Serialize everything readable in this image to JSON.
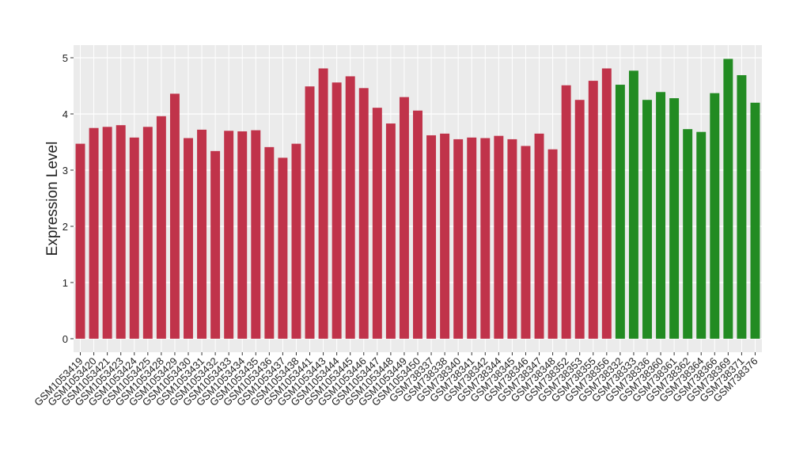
{
  "chart_data": {
    "type": "bar",
    "y_label": "Expression Level",
    "categories": [
      "GSM1053419",
      "GSM1053420",
      "GSM1053421",
      "GSM1053423",
      "GSM1053424",
      "GSM1053425",
      "GSM1053428",
      "GSM1053429",
      "GSM1053430",
      "GSM1053431",
      "GSM1053432",
      "GSM1053433",
      "GSM1053434",
      "GSM1053435",
      "GSM1053436",
      "GSM1053437",
      "GSM1053438",
      "GSM1053441",
      "GSM1053443",
      "GSM1053444",
      "GSM1053445",
      "GSM1053446",
      "GSM1053447",
      "GSM1053448",
      "GSM1053449",
      "GSM1053450",
      "GSM738337",
      "GSM738338",
      "GSM738340",
      "GSM738341",
      "GSM738342",
      "GSM738344",
      "GSM738345",
      "GSM738346",
      "GSM738347",
      "GSM738348",
      "GSM738352",
      "GSM738353",
      "GSM738355",
      "GSM738356",
      "GSM738332",
      "GSM738333",
      "GSM738336",
      "GSM738360",
      "GSM738361",
      "GSM738362",
      "GSM738364",
      "GSM738366",
      "GSM738369",
      "GSM738371",
      "GSM738376"
    ],
    "values": [
      3.47,
      3.75,
      3.77,
      3.8,
      3.58,
      3.77,
      3.96,
      4.36,
      3.57,
      3.72,
      3.34,
      3.7,
      3.69,
      3.71,
      3.41,
      3.22,
      3.47,
      4.49,
      4.81,
      4.56,
      4.67,
      4.46,
      4.11,
      3.83,
      4.3,
      4.06,
      3.62,
      3.65,
      3.55,
      3.58,
      3.57,
      3.61,
      3.55,
      3.43,
      3.65,
      3.37,
      4.51,
      4.25,
      4.59,
      4.81,
      4.52,
      4.77,
      4.25,
      4.39,
      4.28,
      3.73,
      3.68,
      4.37,
      4.98,
      4.69,
      4.2
    ],
    "colors": [
      "#c0334a",
      "#c0334a",
      "#c0334a",
      "#c0334a",
      "#c0334a",
      "#c0334a",
      "#c0334a",
      "#c0334a",
      "#c0334a",
      "#c0334a",
      "#c0334a",
      "#c0334a",
      "#c0334a",
      "#c0334a",
      "#c0334a",
      "#c0334a",
      "#c0334a",
      "#c0334a",
      "#c0334a",
      "#c0334a",
      "#c0334a",
      "#c0334a",
      "#c0334a",
      "#c0334a",
      "#c0334a",
      "#c0334a",
      "#c0334a",
      "#c0334a",
      "#c0334a",
      "#c0334a",
      "#c0334a",
      "#c0334a",
      "#c0334a",
      "#c0334a",
      "#c0334a",
      "#c0334a",
      "#c0334a",
      "#c0334a",
      "#c0334a",
      "#c0334a",
      "#228b22",
      "#228b22",
      "#228b22",
      "#228b22",
      "#228b22",
      "#228b22",
      "#228b22",
      "#228b22",
      "#228b22",
      "#228b22",
      "#228b22"
    ],
    "ylim": [
      -0.24,
      5.225
    ],
    "yticks": [
      0,
      1,
      2,
      3,
      4,
      5
    ],
    "grid": true
  }
}
